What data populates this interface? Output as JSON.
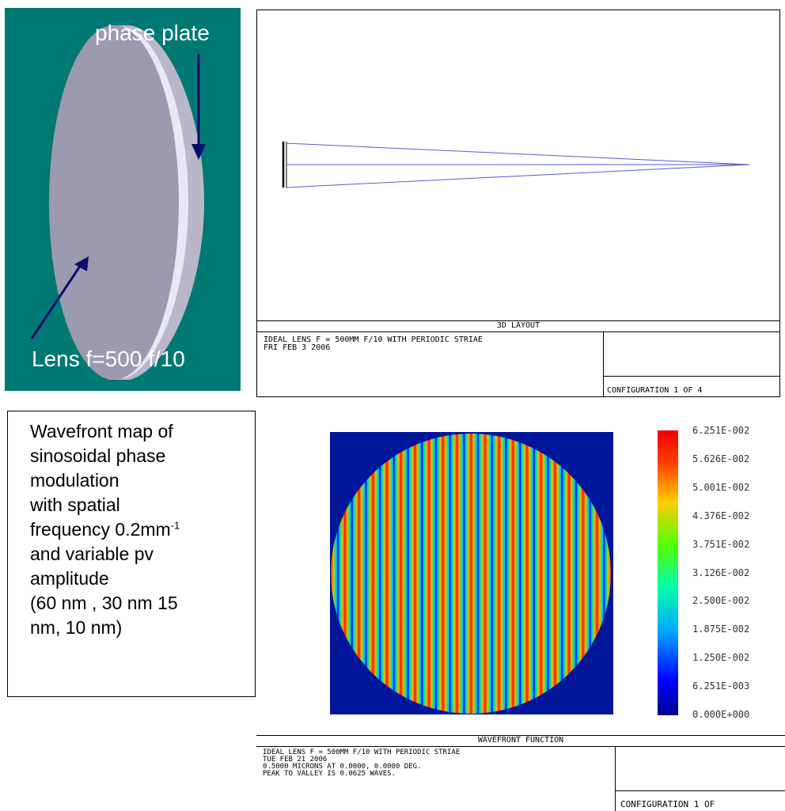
{
  "lens_illustration": {
    "phase_plate_label": "phase plate",
    "lens_label": "Lens f=500 f/10",
    "background_color": "#007874",
    "disc_color": "#9c9aae"
  },
  "layout_panel": {
    "title": "3D LAYOUT",
    "description_line1": "IDEAL LENS F = 500MM F/10 WITH PERIODIC STRIAE",
    "description_line2": "FRI FEB 3 2006",
    "configuration": "CONFIGURATION 1 OF 4"
  },
  "description": {
    "line1": "Wavefront map of",
    "line2": "sinosoidal phase",
    "line3": "modulation",
    "line4": "with spatial",
    "line5_prefix": "frequency 0.2mm",
    "line5_superscript": "-1",
    "line6": "and variable pv",
    "line7": "amplitude",
    "line8": "(60 nm , 30 nm 15",
    "line9": "nm, 10 nm)"
  },
  "wavefront_panel": {
    "title": "WAVEFRONT FUNCTION",
    "description_line1": "IDEAL LENS F = 500MM F/10 WITH PERIODIC STRIAE",
    "description_line2": "TUE FEB 21 2006",
    "description_line3": "0.5000 MICRONS AT 0.0000, 0.0000 DEG.",
    "description_line4": "PEAK TO VALLEY IS 0.0625 WAVES.",
    "configuration": "CONFIGURATION 1 OF",
    "colorbar_labels": [
      "6.251E-002",
      "5.626E-002",
      "5.001E-002",
      "4.376E-002",
      "3.751E-002",
      "3.126E-002",
      "2.500E-002",
      "1.875E-002",
      "1.250E-002",
      "6.251E-003",
      "0.000E+000"
    ],
    "stripe_count": 20,
    "background_color": "#00169a"
  }
}
